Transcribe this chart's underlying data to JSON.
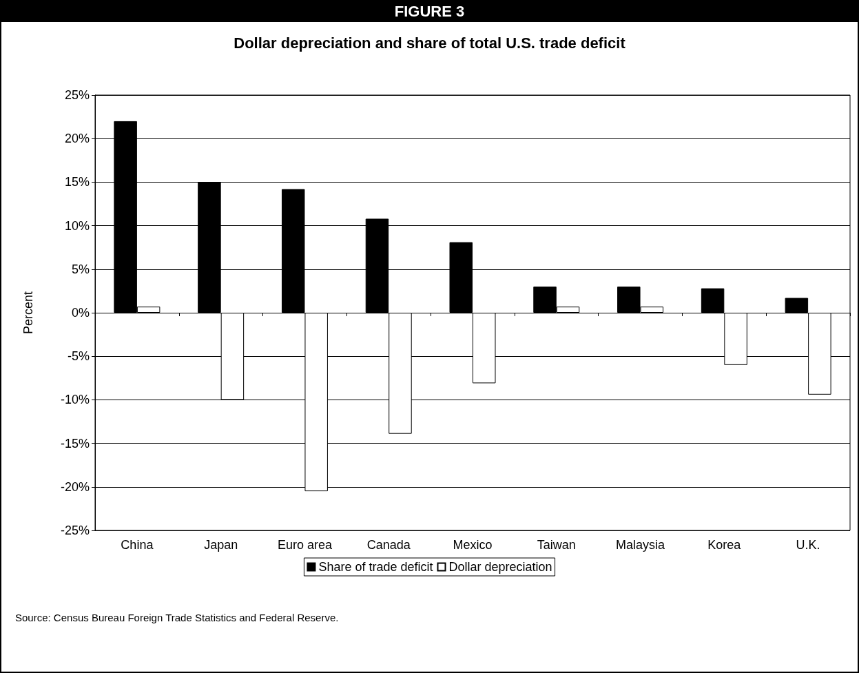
{
  "chart_data": {
    "type": "bar",
    "title": "FIGURE 3",
    "subtitle": "Dollar depreciation and share of total U.S. trade deficit",
    "ylabel": "Percent",
    "categories": [
      "China",
      "Japan",
      "Euro area",
      "Canada",
      "Mexico",
      "Taiwan",
      "Malaysia",
      "Korea",
      "U.K."
    ],
    "series": [
      {
        "name": "Share of trade deficit",
        "color": "#000000",
        "values": [
          22.0,
          15.0,
          14.2,
          10.8,
          8.1,
          3.0,
          3.0,
          2.8,
          1.7
        ]
      },
      {
        "name": "Dollar depreciation",
        "color": "#ffffff",
        "values": [
          0.7,
          -10.0,
          -20.5,
          -13.9,
          -8.1,
          0.7,
          0.7,
          -6.0,
          -9.4
        ]
      }
    ],
    "ylim": [
      -25,
      25
    ],
    "yticks": [
      {
        "value": -25,
        "label": "-25%"
      },
      {
        "value": -20,
        "label": "-20%"
      },
      {
        "value": -15,
        "label": "-15%"
      },
      {
        "value": -10,
        "label": "-10%"
      },
      {
        "value": -5,
        "label": "-5%"
      },
      {
        "value": 0,
        "label": "0%"
      },
      {
        "value": 5,
        "label": "5%"
      },
      {
        "value": 10,
        "label": "10%"
      },
      {
        "value": 15,
        "label": "15%"
      },
      {
        "value": 20,
        "label": "20%"
      },
      {
        "value": 25,
        "label": "25%"
      }
    ],
    "grid": "y",
    "legend": "bottom",
    "annotations": [
      "Source: Census Bureau Foreign Trade Statistics and Federal Reserve."
    ]
  }
}
